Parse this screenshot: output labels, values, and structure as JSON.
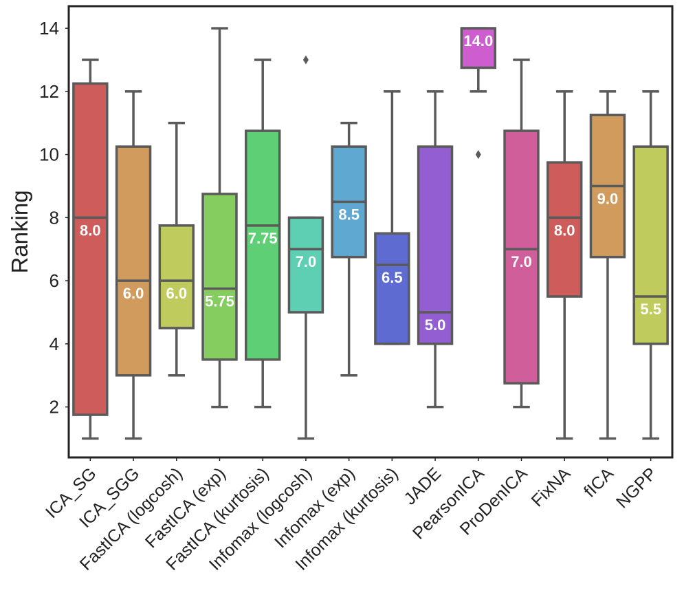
{
  "chart_data": {
    "type": "box",
    "title": "",
    "xlabel": "",
    "ylabel": "Ranking",
    "ylim": [
      0.4,
      14.7
    ],
    "yticks": [
      2,
      4,
      6,
      8,
      10,
      12,
      14
    ],
    "grid": false,
    "categories": [
      "ICA_SG",
      "ICA_SGG",
      "FastICA (logcosh)",
      "FastICA (exp)",
      "FastICA (kurtosis)",
      "Infomax (logcosh)",
      "Infomax (exp)",
      "Infomax (kurtosis)",
      "JADE",
      "PearsonICA",
      "ProDenICA",
      "FixNA",
      "fICA",
      "NGPP"
    ],
    "boxes": [
      {
        "name": "ICA_SG",
        "whislo": 1,
        "q1": 1.75,
        "median": 8.0,
        "q3": 12.25,
        "whishi": 13,
        "fliers": [],
        "median_label": "8.0",
        "color": "#cd5c5a"
      },
      {
        "name": "ICA_SGG",
        "whislo": 1,
        "q1": 3,
        "median": 6.0,
        "q3": 10.25,
        "whishi": 12,
        "fliers": [],
        "median_label": "6.0",
        "color": "#d19b5d"
      },
      {
        "name": "FastICA (logcosh)",
        "whislo": 3,
        "q1": 4.5,
        "median": 6.0,
        "q3": 7.75,
        "whishi": 11,
        "fliers": [],
        "median_label": "6.0",
        "color": "#bfcc5d"
      },
      {
        "name": "FastICA (exp)",
        "whislo": 2,
        "q1": 3.5,
        "median": 5.75,
        "q3": 8.75,
        "whishi": 14,
        "fliers": [],
        "median_label": "5.75",
        "color": "#85cd5e"
      },
      {
        "name": "FastICA (kurtosis)",
        "whislo": 2,
        "q1": 3.5,
        "median": 7.75,
        "q3": 10.75,
        "whishi": 13,
        "fliers": [],
        "median_label": "7.75",
        "color": "#5ecf75"
      },
      {
        "name": "Infomax (logcosh)",
        "whislo": 1,
        "q1": 5,
        "median": 7.0,
        "q3": 8.0,
        "whishi": 8,
        "fliers": [
          13
        ],
        "median_label": "7.0",
        "color": "#5ecfb2"
      },
      {
        "name": "Infomax (exp)",
        "whislo": 3,
        "q1": 6.75,
        "median": 8.5,
        "q3": 10.25,
        "whishi": 11,
        "fliers": [],
        "median_label": "8.5",
        "color": "#5ea8d1"
      },
      {
        "name": "Infomax (kurtosis)",
        "whislo": 4,
        "q1": 4,
        "median": 6.5,
        "q3": 7.5,
        "whishi": 12,
        "fliers": [],
        "median_label": "6.5",
        "color": "#5e6cd1"
      },
      {
        "name": "JADE",
        "whislo": 2,
        "q1": 4,
        "median": 5.0,
        "q3": 10.25,
        "whishi": 12,
        "fliers": [],
        "median_label": "5.0",
        "color": "#935ed1"
      },
      {
        "name": "PearsonICA",
        "whislo": 12,
        "q1": 12.75,
        "median": 14.0,
        "q3": 14.0,
        "whishi": 14,
        "fliers": [
          10
        ],
        "median_label": "14.0",
        "color": "#ce5ecf"
      },
      {
        "name": "ProDenICA",
        "whislo": 2,
        "q1": 2.75,
        "median": 7.0,
        "q3": 10.75,
        "whishi": 13,
        "fliers": [],
        "median_label": "7.0",
        "color": "#cf5e9a"
      },
      {
        "name": "FixNA",
        "whislo": 1,
        "q1": 5.5,
        "median": 8.0,
        "q3": 9.75,
        "whishi": 12,
        "fliers": [],
        "median_label": "8.0",
        "color": "#cd5c5a"
      },
      {
        "name": "fICA",
        "whislo": 1,
        "q1": 6.75,
        "median": 9.0,
        "q3": 11.25,
        "whishi": 12,
        "fliers": [],
        "median_label": "9.0",
        "color": "#d19b5d"
      },
      {
        "name": "NGPP",
        "whislo": 1,
        "q1": 4,
        "median": 5.5,
        "q3": 10.25,
        "whishi": 12,
        "fliers": [],
        "median_label": "5.5",
        "color": "#bfcc5d"
      }
    ],
    "box_edge_color": "#5a5a5a"
  }
}
